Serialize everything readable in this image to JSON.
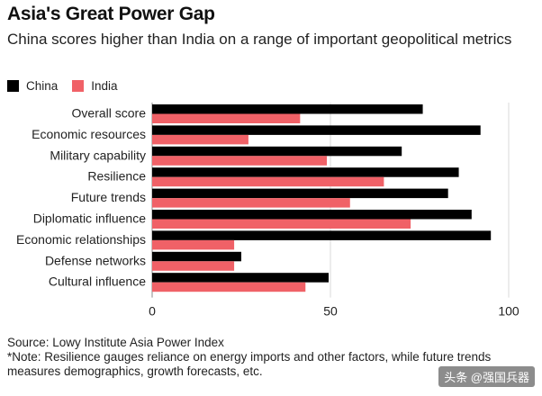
{
  "chart_data": {
    "type": "bar",
    "title": "Asia's Great Power Gap",
    "subtitle": "China scores higher than India on a range of important geopolitical metrics",
    "categories": [
      "Overall score",
      "Economic resources",
      "Military capability",
      "Resilience",
      "Future trends",
      "Diplomatic influence",
      "Economic relationships",
      "Defense networks",
      "Cultural influence"
    ],
    "series": [
      {
        "name": "China",
        "color": "#000000",
        "values": [
          75.9,
          92.1,
          70.0,
          86.0,
          83.0,
          89.6,
          95.0,
          25.0,
          49.5
        ]
      },
      {
        "name": "India",
        "color": "#f06167",
        "values": [
          41.5,
          27.0,
          49.0,
          65.0,
          55.5,
          72.5,
          23.0,
          23.0,
          43.0
        ]
      }
    ],
    "xticks": [
      "0",
      "50",
      "100"
    ],
    "xlim": [
      0,
      100
    ],
    "xlabel": "",
    "ylabel": "",
    "orientation": "horizontal",
    "grid": true,
    "legend": "top-left"
  },
  "source": "Source: Lowy Institute Asia Power Index",
  "note": "*Note: Resilience gauges reliance on energy imports and other factors, while future trends measures demographics, growth forecasts, etc.",
  "watermark": "头条 @强国兵器"
}
